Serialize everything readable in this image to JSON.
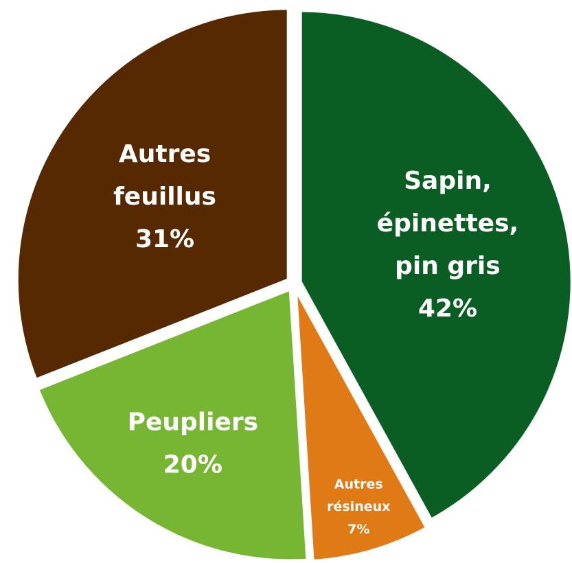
{
  "chart_data": {
    "type": "pie",
    "categories": [
      [
        "Sapin,",
        "épinettes,",
        "pin gris"
      ],
      [
        "Autres",
        "résineux"
      ],
      [
        "Peupliers"
      ],
      [
        "Autres",
        "feuillus"
      ]
    ],
    "values": [
      42,
      7,
      20,
      31
    ],
    "value_labels": [
      "42%",
      "7%",
      "20%",
      "31%"
    ],
    "colors": [
      "#0b5e23",
      "#df7a14",
      "#76b632",
      "#562900"
    ]
  }
}
